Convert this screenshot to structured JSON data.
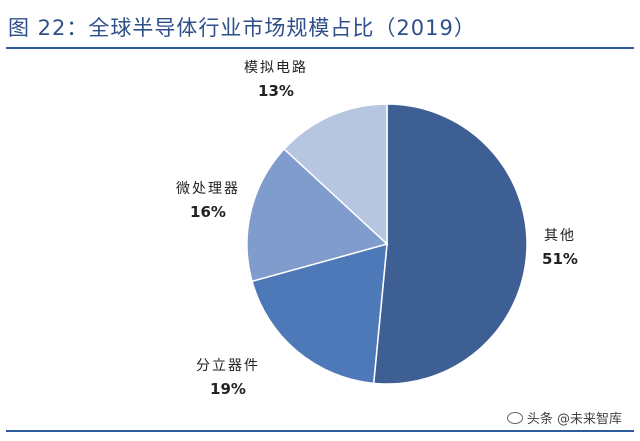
{
  "title": "图 22：全球半导体行业市场规模占比（2019）",
  "watermark": "头条 @未来智库",
  "chart_data": {
    "type": "pie",
    "title": "图 22：全球半导体行业市场规模占比（2019）",
    "slices": [
      {
        "label": "其他",
        "value": 51,
        "pct": "51%",
        "color": "#3e5f94"
      },
      {
        "label": "分立器件",
        "value": 19,
        "pct": "19%",
        "color": "#4d79b8"
      },
      {
        "label": "微处理器",
        "value": 16,
        "pct": "16%",
        "color": "#7f9ccc"
      },
      {
        "label": "模拟电路",
        "value": 13,
        "pct": "13%",
        "color": "#b6c6e1"
      }
    ],
    "start_angle_deg": 0,
    "direction": "clockwise"
  }
}
